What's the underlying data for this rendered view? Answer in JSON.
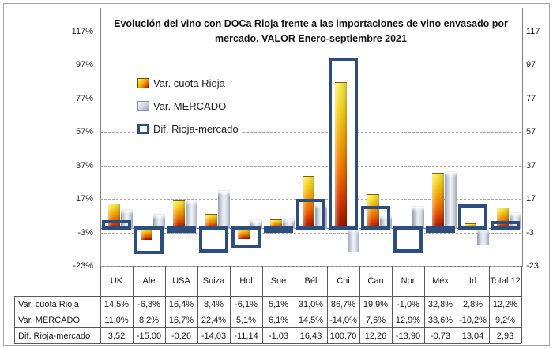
{
  "title_lines": [
    "Evolución del vino con DOCa Rioja frente a las importaciones de vino envasado por",
    "mercado. VALOR Enero-septiembre 2021"
  ],
  "legend": {
    "items": [
      {
        "label": "Var. cuota Rioja",
        "swatch": "rioja-gradient-square"
      },
      {
        "label": "Var. MERCADO",
        "swatch": "silver-gradient-square"
      },
      {
        "label": "Dif. Rioja-mercado",
        "swatch": "blue-outline-square"
      }
    ]
  },
  "colors": {
    "rioja_bar_top": "#F9ED55",
    "rioja_bar_mid": "#EF7004",
    "rioja_bar_bottom": "#961500",
    "mercado_bar_light": "#EFF2F7",
    "mercado_bar_dark": "#9FA7B9",
    "diff_outline_blue": "#2C4D7E",
    "gridline_gray": "#A6A6A6",
    "axis_gray": "#7F7F7F",
    "table_line": "#595959",
    "text": "#1F1F1F"
  },
  "chart_data": {
    "type": "bar",
    "title": "Evolución del vino con DOCa Rioja frente a las importaciones de vino envasado por mercado. VALOR Enero-septiembre 2021",
    "categories": [
      "UK",
      "Ale",
      "USA",
      "Suiza",
      "Hol",
      "Sue",
      "Bél",
      "Chi",
      "Can",
      "Nor",
      "Méx",
      "Irl",
      "Total 12"
    ],
    "series": [
      {
        "name": "Var. cuota Rioja",
        "values": [
          14.5,
          -6.8,
          16.4,
          8.4,
          -6.1,
          5.1,
          31.0,
          86.7,
          19.9,
          -1.0,
          32.8,
          2.8,
          12.2
        ]
      },
      {
        "name": "Var. MERCADO",
        "values": [
          11.0,
          8.2,
          16.7,
          22.4,
          5.1,
          6.1,
          14.5,
          -14.0,
          7.6,
          12.9,
          33.6,
          -10.2,
          9.2
        ]
      },
      {
        "name": "Dif. Rioja-mercado",
        "values": [
          3.52,
          -15.0,
          -0.26,
          -14.03,
          -11.14,
          -1.03,
          16.43,
          100.7,
          12.26,
          -13.9,
          -0.73,
          13.04,
          2.93
        ]
      }
    ],
    "y_tick_values": [
      117,
      97,
      77,
      57,
      37,
      17,
      -3,
      -23
    ],
    "y_ticks_left": [
      "117%",
      "97%",
      "77%",
      "57%",
      "37%",
      "17%",
      "-3%",
      "-23%"
    ],
    "y_ticks_right": [
      "117",
      "97",
      "77",
      "57",
      "37",
      "17",
      "-3",
      "-23"
    ],
    "ylim": [
      -23,
      131
    ],
    "grid": "dashed-horizontal",
    "legend_position": "inside-top-left"
  },
  "table": {
    "col_headers": [
      "UK",
      "Ale",
      "USA",
      "Suiza",
      "Hol",
      "Sue",
      "Bél",
      "Chi",
      "Can",
      "Nor",
      "Méx",
      "Irl",
      "Total 12"
    ],
    "rows": [
      {
        "label": "Var. cuota Rioja",
        "values": [
          "14,5%",
          "-6,8%",
          "16,4%",
          "8,4%",
          "-6,1%",
          "5,1%",
          "31,0%",
          "86,7%",
          "19,9%",
          "-1,0%",
          "32,8%",
          "2,8%",
          "12,2%"
        ]
      },
      {
        "label": "Var. MERCADO",
        "values": [
          "11,0%",
          "8,2%",
          "16,7%",
          "22,4%",
          "5,1%",
          "6,1%",
          "14,5%",
          "-14,0%",
          "7,6%",
          "12,9%",
          "33,6%",
          "-10,2%",
          "9,2%"
        ]
      },
      {
        "label": "Dif. Rioja-mercado",
        "values": [
          "3,52",
          "-15,00",
          "-0,26",
          "-14,03",
          "-11,14",
          "-1,03",
          "16,43",
          "100,70",
          "12,26",
          "-13,90",
          "-0,73",
          "13,04",
          "2,93"
        ]
      }
    ]
  }
}
